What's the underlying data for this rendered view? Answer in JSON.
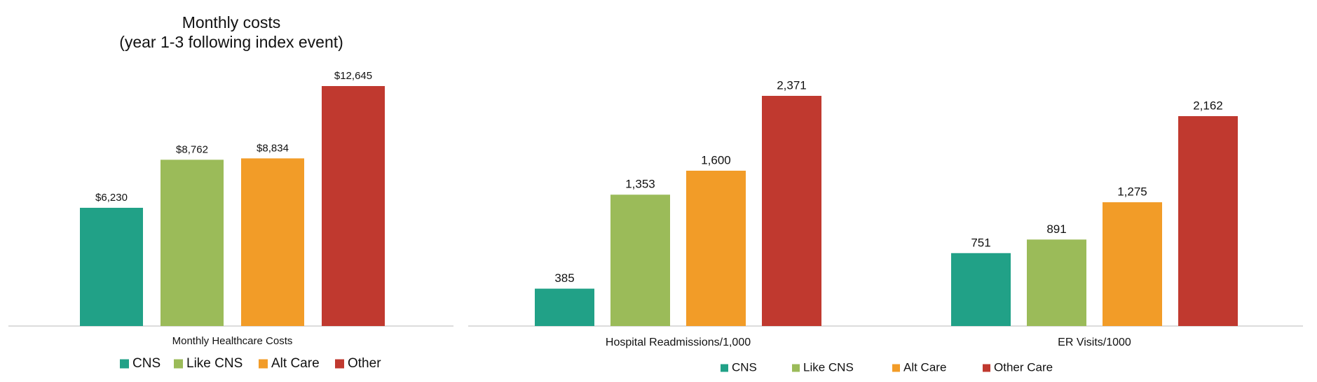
{
  "chart_data": [
    {
      "type": "bar",
      "title": "Monthly costs",
      "subtitle": "(year 1-3 following index event)",
      "categories": [
        "Monthly Healthcare Costs"
      ],
      "series": [
        {
          "name": "CNS",
          "color": "#21a187",
          "values": [
            6230
          ],
          "value_labels": [
            "$6,230"
          ]
        },
        {
          "name": "Like CNS",
          "color": "#9bbb59",
          "values": [
            8762
          ],
          "value_labels": [
            "$8,762"
          ]
        },
        {
          "name": "Alt Care",
          "color": "#f29c28",
          "values": [
            8834
          ],
          "value_labels": [
            "$8,834"
          ]
        },
        {
          "name": "Other",
          "color": "#c0392f",
          "values": [
            12645
          ],
          "value_labels": [
            "$12,645"
          ]
        }
      ]
    },
    {
      "type": "bar",
      "categories": [
        "Hospital Readmissions/1,000",
        "ER Visits/1000"
      ],
      "series": [
        {
          "name": "CNS",
          "color": "#21a187",
          "values": [
            385,
            751
          ]
        },
        {
          "name": "Like CNS",
          "color": "#9bbb59",
          "values": [
            1353,
            891
          ],
          "value_labels": [
            "1,353",
            "891"
          ]
        },
        {
          "name": "Alt Care",
          "color": "#f29c28",
          "values": [
            1600,
            1275
          ],
          "value_labels": [
            "1,600",
            "1,275"
          ]
        },
        {
          "name": "Other Care",
          "color": "#c0392f",
          "values": [
            2371,
            2162
          ],
          "value_labels": [
            "2,371",
            "2,162"
          ]
        }
      ]
    }
  ]
}
